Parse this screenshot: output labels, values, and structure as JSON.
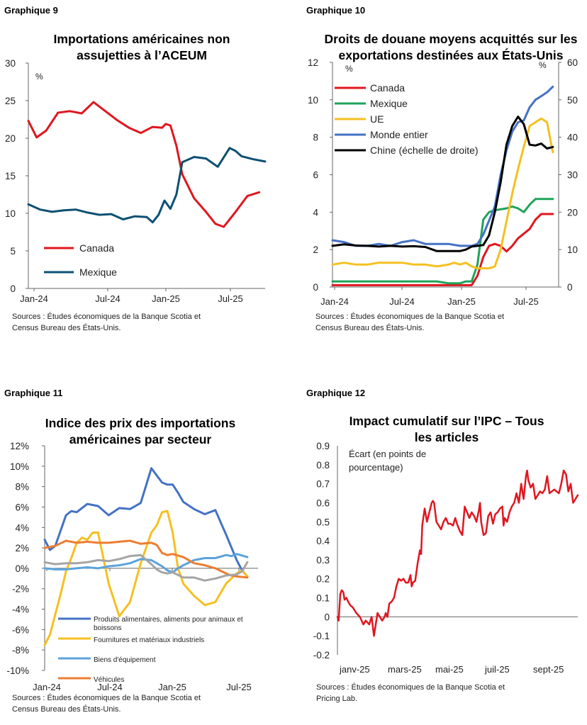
{
  "charts": [
    {
      "number": "Graphique 9",
      "title": "Importations américaines non assujetties à l’ACEUM",
      "unit_left": "%",
      "sources": [
        "Sources : Études économiques de la Banque Scotia et",
        "Census Bureau des États-Unis."
      ]
    },
    {
      "number": "Graphique 10",
      "title": "Droits de douane moyens acquittés sur les exportations destinées aux États-Unis",
      "unit_left": "%",
      "unit_right": "%",
      "sources": [
        "Sources : Études économiques de la Banque Scotia et",
        "Census Bureau des États-Unis."
      ]
    },
    {
      "number": "Graphique 11",
      "title": "Indice des prix des importations américaines par secteur",
      "sources": [
        "Sources : Études économiques de la Banque Scotia et",
        "Census Bureau des États-Unis."
      ]
    },
    {
      "number": "Graphique 12",
      "title": "Impact cumulatif sur l’IPC – Tous les articles",
      "unit_left": "Écart (en points de pourcentage)",
      "sources": [
        "Sources : Études économiques de la Banque Scotia et",
        "Pricing Lab."
      ]
    }
  ],
  "chart_data": [
    {
      "type": "line",
      "title": "Importations américaines non assujetties à l’ACEUM",
      "ylim": [
        0,
        30
      ],
      "yticks": [
        0,
        5,
        10,
        15,
        20,
        25,
        30
      ],
      "xticks": [
        "Jan-24",
        "Jul-24",
        "Jan-25",
        "Jul-25"
      ],
      "x_range": [
        0,
        20
      ],
      "grid": false,
      "legend": "bottom-left",
      "series": [
        {
          "name": "Canada",
          "color": "#e0161f",
          "x": [
            0,
            0.7,
            1.5,
            2.5,
            3.5,
            4.5,
            5.5,
            6.5,
            7.5,
            8.5,
            9.5,
            10.5,
            11.3,
            11.6,
            12,
            12.5,
            13,
            14,
            15,
            15.8,
            16.5,
            17.5,
            18.5,
            19.5
          ],
          "values": [
            22.3,
            20.1,
            21,
            23.4,
            23.6,
            23.3,
            24.8,
            23.6,
            22.4,
            21.4,
            20.7,
            21.5,
            21.4,
            21.9,
            21.7,
            19,
            15.2,
            12,
            10.2,
            8.6,
            8.2,
            10.2,
            12.3,
            12.8
          ]
        },
        {
          "name": "Mexique",
          "color": "#0d5073",
          "x": [
            0,
            1,
            2,
            3,
            4,
            5,
            6,
            7,
            8,
            9,
            10,
            10.5,
            11,
            11.5,
            12,
            12.5,
            13,
            14,
            15,
            16,
            17,
            17.5,
            18,
            19,
            20
          ],
          "values": [
            11.2,
            10.5,
            10.2,
            10.4,
            10.5,
            10.1,
            9.8,
            9.9,
            9.2,
            9.6,
            9.5,
            8.8,
            9.8,
            11.7,
            10.6,
            12.5,
            16.8,
            17.5,
            17.3,
            16.2,
            18.7,
            18.3,
            17.6,
            17.2,
            16.9
          ]
        }
      ]
    },
    {
      "type": "line",
      "title": "Droits de douane moyens acquittés sur les exportations destinées aux États-Unis",
      "ylim": [
        0,
        12
      ],
      "yticks": [
        0,
        2,
        4,
        6,
        8,
        10,
        12
      ],
      "y2lim": [
        0,
        60
      ],
      "y2ticks": [
        0,
        10,
        20,
        30,
        40,
        50,
        60
      ],
      "xticks": [
        "Jan-24",
        "Jul-24",
        "Jan-25",
        "Jul-25"
      ],
      "x_range": [
        0,
        19.5
      ],
      "grid": false,
      "legend": "top-left",
      "series": [
        {
          "name": "Canada",
          "color": "#e0161f",
          "x": [
            0,
            1,
            2,
            3,
            4,
            5,
            6,
            7,
            8,
            9,
            10,
            11,
            12,
            12.5,
            13,
            13.5,
            14,
            14.5,
            15,
            15.5,
            16,
            17,
            17.5,
            18,
            18.5,
            19
          ],
          "values": [
            0.1,
            0.1,
            0.1,
            0.1,
            0.1,
            0.1,
            0.1,
            0.1,
            0.1,
            0.1,
            0.1,
            0.1,
            0.1,
            0.6,
            1.6,
            2.2,
            2.3,
            2.2,
            1.9,
            2.2,
            2.6,
            3.1,
            3.6,
            3.9,
            3.9,
            3.9
          ]
        },
        {
          "name": "Mexique",
          "color": "#1ea35a",
          "x": [
            0,
            1,
            2,
            3,
            4,
            5,
            6,
            7,
            8,
            9,
            10,
            10.5,
            11,
            11.5,
            12,
            12.5,
            13,
            13.5,
            14,
            15,
            15.5,
            16,
            16.5,
            17,
            17.5,
            18,
            19
          ],
          "values": [
            0.3,
            0.3,
            0.3,
            0.3,
            0.3,
            0.3,
            0.3,
            0.3,
            0.3,
            0.3,
            0.2,
            0.2,
            0.2,
            0.3,
            0.3,
            1.2,
            3.6,
            4,
            4.1,
            4.2,
            4.3,
            4.2,
            4,
            4.4,
            4.7,
            4.7,
            4.7
          ]
        },
        {
          "name": "UE",
          "color": "#f5c020",
          "x": [
            0,
            1,
            2,
            3,
            4,
            5,
            6,
            7,
            8,
            9,
            10,
            10.5,
            11,
            11.5,
            12,
            12.5,
            13,
            13.5,
            14,
            14.5,
            15,
            15.5,
            16,
            16.5,
            17,
            17.5,
            18,
            18.5,
            19
          ],
          "values": [
            1.2,
            1.3,
            1.2,
            1.2,
            1.3,
            1.3,
            1.3,
            1.2,
            1.2,
            1.1,
            1.2,
            1.3,
            1.2,
            1.3,
            1.1,
            1.0,
            1.0,
            1.0,
            1.1,
            2.0,
            3.5,
            5,
            6.3,
            7.5,
            8.6,
            8.8,
            9,
            8.8,
            7.2
          ]
        },
        {
          "name": "Monde entier",
          "color": "#4472c4",
          "x": [
            0,
            1,
            2,
            3,
            4,
            5,
            6,
            7,
            8,
            9,
            10,
            11,
            12,
            12.5,
            13,
            14,
            14.5,
            15,
            15.5,
            16,
            16.5,
            17,
            17.5,
            18,
            18.5,
            19
          ],
          "values": [
            2.5,
            2.4,
            2.2,
            2.2,
            2.3,
            2.2,
            2.4,
            2.5,
            2.3,
            2.3,
            2.3,
            2.2,
            2.2,
            2.3,
            2.8,
            4.3,
            6,
            7.3,
            8.3,
            8.8,
            8.9,
            9.6,
            10,
            10.2,
            10.4,
            10.7
          ]
        },
        {
          "name": "Chine (échelle de droite)",
          "color": "#000000",
          "axis": "right",
          "x": [
            0,
            1,
            2,
            3,
            4,
            5,
            6,
            7,
            8,
            9,
            10,
            11,
            11.5,
            12,
            12.5,
            13,
            13.5,
            14,
            14.5,
            15,
            15.5,
            16,
            16.5,
            17,
            17.5,
            18,
            18.5,
            19
          ],
          "values": [
            11,
            11.4,
            11.1,
            11,
            10.8,
            11,
            10.8,
            10.9,
            10.7,
            9.6,
            9.6,
            9.6,
            10,
            10.8,
            11,
            11.2,
            13.8,
            20,
            28,
            38,
            43,
            45.5,
            43.5,
            38,
            37.8,
            38.3,
            37,
            37.4
          ]
        }
      ]
    },
    {
      "type": "line",
      "title": "Indice des prix des importations américaines par secteur",
      "ylim": [
        -10,
        12
      ],
      "yticks": [
        "-10%",
        "-8%",
        "-6%",
        "-4%",
        "-2%",
        "0%",
        "2%",
        "4%",
        "6%",
        "8%",
        "10%",
        "12%"
      ],
      "xticks": [
        "Jan-24",
        "Jul-24",
        "Jan-25",
        "Jul-25"
      ],
      "x_range": [
        0,
        20
      ],
      "grid": false,
      "legend": "bottom-center",
      "series": [
        {
          "name": "Produits alimentaires, aliments pour animaux et boissons",
          "color": "#4472c4",
          "x": [
            0,
            0.5,
            1,
            2,
            2.5,
            3,
            4,
            5,
            6,
            7,
            8,
            9,
            10,
            11,
            11.5,
            12,
            12.5,
            13,
            14,
            15,
            16,
            17,
            18,
            18.5,
            19
          ],
          "values": [
            2.8,
            1.8,
            2.2,
            5.2,
            5.6,
            5.5,
            6.3,
            6.1,
            5.2,
            5.9,
            5.8,
            6.4,
            9.8,
            8.4,
            8.2,
            8.2,
            7.4,
            6.5,
            5.8,
            5.3,
            5.7,
            3.3,
            0.8,
            -0.2,
            -0.8
          ]
        },
        {
          "name": "Fournitures et matériaux industriels",
          "color": "#f5c020",
          "x": [
            0,
            0.5,
            1,
            1.5,
            2,
            2.5,
            3,
            3.5,
            4,
            4.5,
            5,
            5.5,
            6,
            7,
            8,
            9,
            10,
            10.5,
            11,
            11.5,
            12,
            12.5,
            13,
            14,
            15,
            16,
            17,
            18,
            18.5,
            19
          ],
          "values": [
            -7.5,
            -6.5,
            -4.5,
            -2.5,
            -0.3,
            1,
            2.5,
            3,
            2.8,
            3.5,
            3.5,
            1,
            -1.5,
            -4.7,
            -3.3,
            0.5,
            3.5,
            4.2,
            5.5,
            5.6,
            3.5,
            0,
            -1.5,
            -2.7,
            -3.6,
            -3.3,
            -1.5,
            -0.5,
            -0.2,
            -0.8
          ]
        },
        {
          "name": "Biens d'équipement",
          "color": "#5ba3dc",
          "x": [
            0,
            1,
            2,
            3,
            4,
            5,
            6,
            7,
            8,
            9,
            10,
            10.5,
            11,
            11.5,
            12,
            12.5,
            13,
            14,
            15,
            16,
            17,
            17.5,
            18,
            19
          ],
          "values": [
            0,
            -0.1,
            -0.1,
            0,
            0.1,
            0,
            0.2,
            0.3,
            0.5,
            0.9,
            0.8,
            0.5,
            0.2,
            -0.2,
            -0.4,
            0,
            0.3,
            0.8,
            1,
            1,
            1.3,
            1.2,
            1.4,
            1.1
          ]
        },
        {
          "name": "Véhicules",
          "color": "#ed7d31",
          "x": [
            0,
            1,
            2,
            3,
            4,
            5,
            6,
            7,
            8,
            9,
            10,
            10.5,
            11,
            11.5,
            12,
            13,
            14,
            15,
            16,
            17,
            17.5,
            18,
            19
          ],
          "values": [
            2,
            2.2,
            2.7,
            2.5,
            2.6,
            2.5,
            2.5,
            2.6,
            2.7,
            2.4,
            2.5,
            2.3,
            1.5,
            1.3,
            1.4,
            1.1,
            0.5,
            0.3,
            0,
            -0.5,
            -0.7,
            -0.8,
            -0.9
          ]
        },
        {
          "color": "#a5a5a5",
          "x": [
            0,
            1,
            2,
            3,
            4,
            5,
            6,
            7,
            8,
            9,
            10,
            10.5,
            11,
            11.5,
            12,
            13,
            14,
            15,
            16,
            17,
            18,
            18.5,
            19
          ],
          "values": [
            0.6,
            0.4,
            0.5,
            0.5,
            0.6,
            0.8,
            0.7,
            0.9,
            1.2,
            1.3,
            0.4,
            -0.1,
            -0.4,
            -0.5,
            -0.4,
            -0.9,
            -0.9,
            -1.2,
            -1,
            -0.7,
            -0.6,
            -0.3,
            0.6
          ]
        }
      ]
    },
    {
      "type": "line",
      "title": "Impact cumulatif sur l’IPC – Tous les articles",
      "ylim": [
        -0.2,
        0.9
      ],
      "yticks": [
        "-0.2",
        "-0.1",
        "0",
        "0.1",
        "0.2",
        "0.3",
        "0.4",
        "0.5",
        "0.6",
        "0.7",
        "0.8",
        "0.9"
      ],
      "xticks": [
        "janv-25",
        "mars-25",
        "mai-25",
        "juil-25",
        "sept-25"
      ],
      "x_range": [
        0,
        10.2
      ],
      "grid": false,
      "series": [
        {
          "color": "#e0161f",
          "x": [
            0,
            0.05,
            0.12,
            0.18,
            0.25,
            0.3,
            0.38,
            0.45,
            0.55,
            0.65,
            0.8,
            0.95,
            1.1,
            1.2,
            1.35,
            1.45,
            1.55,
            1.7,
            1.8,
            1.9,
            2.0,
            2.05,
            2.12,
            2.2,
            2.3,
            2.4,
            2.5,
            2.6,
            2.7,
            2.8,
            2.9,
            3.0,
            3.05,
            3.1,
            3.15,
            3.2,
            3.3,
            3.4,
            3.5,
            3.55,
            3.6,
            3.7,
            3.8,
            3.9,
            4.0,
            4.05,
            4.1,
            4.2,
            4.3,
            4.4,
            4.5,
            4.6,
            4.7,
            4.8,
            4.9,
            5.0,
            5.05,
            5.1,
            5.2,
            5.3,
            5.4,
            5.5,
            5.6,
            5.7,
            5.8,
            5.9,
            6.0,
            6.05,
            6.1,
            6.2,
            6.3,
            6.4,
            6.5,
            6.6,
            6.7,
            6.8,
            6.9,
            7.0,
            7.05,
            7.1,
            7.2,
            7.3,
            7.4,
            7.5,
            7.6,
            7.7,
            7.8,
            7.9,
            8.0,
            8.05,
            8.1,
            8.2,
            8.3,
            8.4,
            8.5,
            8.6,
            8.7,
            8.8,
            8.9,
            9.0,
            9.1,
            9.2,
            9.3,
            9.4,
            9.5,
            9.6,
            9.7,
            9.8,
            9.9,
            10.0,
            10.1,
            10.2
          ],
          "values": [
            0.0,
            -0.02,
            0.12,
            0.14,
            0.13,
            0.09,
            0.1,
            0.08,
            0.06,
            0.05,
            0.02,
            0.0,
            -0.04,
            -0.02,
            -0.04,
            0.0,
            -0.1,
            0.02,
            0.0,
            -0.02,
            0.0,
            0.02,
            0.0,
            0.07,
            0.08,
            0.1,
            0.16,
            0.2,
            0.19,
            0.2,
            0.18,
            0.18,
            0.2,
            0.22,
            0.16,
            0.18,
            0.19,
            0.28,
            0.35,
            0.33,
            0.48,
            0.57,
            0.5,
            0.55,
            0.6,
            0.61,
            0.6,
            0.5,
            0.48,
            0.46,
            0.5,
            0.52,
            0.49,
            0.49,
            0.48,
            0.52,
            0.5,
            0.48,
            0.45,
            0.43,
            0.58,
            0.55,
            0.52,
            0.55,
            0.53,
            0.5,
            0.56,
            0.6,
            0.5,
            0.43,
            0.44,
            0.53,
            0.55,
            0.49,
            0.54,
            0.55,
            0.57,
            0.58,
            0.48,
            0.52,
            0.5,
            0.55,
            0.58,
            0.6,
            0.65,
            0.6,
            0.7,
            0.62,
            0.74,
            0.77,
            0.72,
            0.68,
            0.7,
            0.62,
            0.64,
            0.66,
            0.65,
            0.67,
            0.74,
            0.65,
            0.66,
            0.67,
            0.66,
            0.65,
            0.7,
            0.77,
            0.75,
            0.66,
            0.7,
            0.6,
            0.62,
            0.64
          ]
        }
      ]
    }
  ]
}
